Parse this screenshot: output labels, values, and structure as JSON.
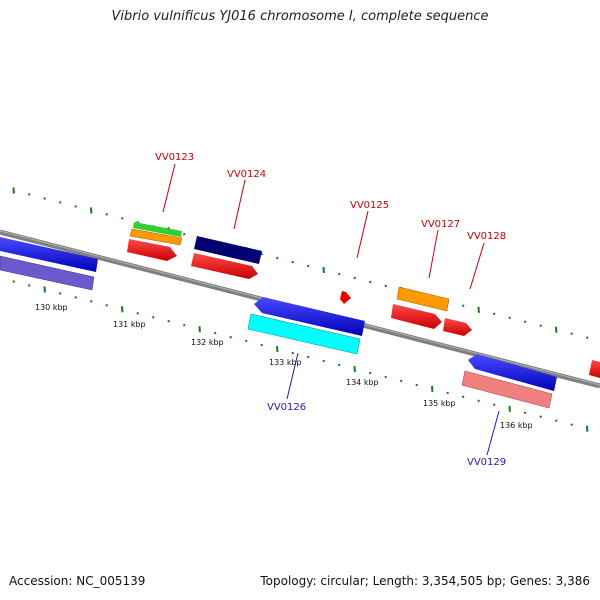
{
  "title": "Vibrio vulnificus YJ016 chromosome I, complete sequence",
  "footer": {
    "accession": "Accession: NC_005139",
    "stats": "Topology: circular; Length: 3,354,505 bp; Genes: 3,386"
  },
  "colors": {
    "backbone": "#7f7f7f",
    "tick": "#1a7a1a",
    "forward_label": "#cc0000",
    "reverse_label": "#1a1acc"
  },
  "kbp_ticks": [
    {
      "label": "130 kbp",
      "kbp": 130
    },
    {
      "label": "131 kbp",
      "kbp": 131
    },
    {
      "label": "132 kbp",
      "kbp": 132
    },
    {
      "label": "133 kbp",
      "kbp": 133
    },
    {
      "label": "134 kbp",
      "kbp": 134
    },
    {
      "label": "135 kbp",
      "kbp": 135
    },
    {
      "label": "136 kbp",
      "kbp": 136
    }
  ],
  "gene_labels": [
    {
      "label": "VV0123",
      "strand": "forward"
    },
    {
      "label": "VV0124",
      "strand": "forward"
    },
    {
      "label": "VV0125",
      "strand": "forward"
    },
    {
      "label": "VV0127",
      "strand": "forward"
    },
    {
      "label": "VV0128",
      "strand": "forward"
    },
    {
      "label": "VV0126",
      "strand": "reverse"
    },
    {
      "label": "VV0129",
      "strand": "reverse"
    }
  ]
}
